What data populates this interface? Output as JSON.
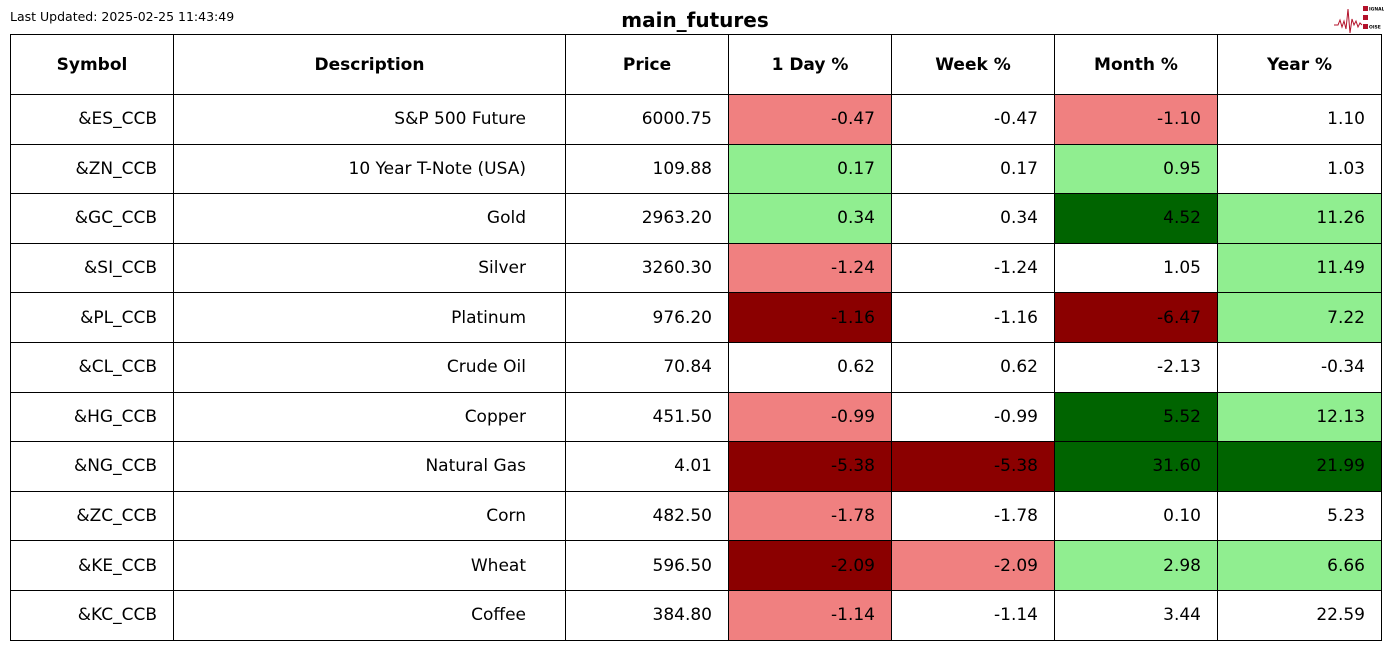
{
  "header": {
    "last_updated": "Last Updated: 2025-02-25 11:43:49",
    "title": "main_futures",
    "logo_text": "SIGNAL 2 NOISE"
  },
  "colors": {
    "LC": "#f08080",
    "LG": "#90ee90",
    "DR": "#8b0000",
    "DG": "#006400",
    "W": "#ffffff"
  },
  "columns": [
    "Symbol",
    "Description",
    "Price",
    "1 Day %",
    "Week %",
    "Month %",
    "Year %"
  ],
  "rows": [
    {
      "cells": [
        "&ES_CCB",
        "S&P 500 Future",
        "6000.75",
        "-0.47",
        "-0.47",
        "-1.10",
        "1.10"
      ],
      "colors": [
        "LC",
        "W",
        "LC",
        "W"
      ]
    },
    {
      "cells": [
        "&ZN_CCB",
        "10 Year T-Note (USA)",
        "109.88",
        "0.17",
        "0.17",
        "0.95",
        "1.03"
      ],
      "colors": [
        "LG",
        "W",
        "LG",
        "W"
      ]
    },
    {
      "cells": [
        "&GC_CCB",
        "Gold",
        "2963.20",
        "0.34",
        "0.34",
        "4.52",
        "11.26"
      ],
      "colors": [
        "LG",
        "W",
        "DG",
        "LG"
      ]
    },
    {
      "cells": [
        "&SI_CCB",
        "Silver",
        "3260.30",
        "-1.24",
        "-1.24",
        "1.05",
        "11.49"
      ],
      "colors": [
        "LC",
        "W",
        "W",
        "LG"
      ]
    },
    {
      "cells": [
        "&PL_CCB",
        "Platinum",
        "976.20",
        "-1.16",
        "-1.16",
        "-6.47",
        "7.22"
      ],
      "colors": [
        "DR",
        "W",
        "DR",
        "LG"
      ]
    },
    {
      "cells": [
        "&CL_CCB",
        "Crude Oil",
        "70.84",
        "0.62",
        "0.62",
        "-2.13",
        "-0.34"
      ],
      "colors": [
        "W",
        "W",
        "W",
        "W"
      ]
    },
    {
      "cells": [
        "&HG_CCB",
        "Copper",
        "451.50",
        "-0.99",
        "-0.99",
        "5.52",
        "12.13"
      ],
      "colors": [
        "LC",
        "W",
        "DG",
        "LG"
      ]
    },
    {
      "cells": [
        "&NG_CCB",
        "Natural Gas",
        "4.01",
        "-5.38",
        "-5.38",
        "31.60",
        "21.99"
      ],
      "colors": [
        "DR",
        "DR",
        "DG",
        "DG"
      ]
    },
    {
      "cells": [
        "&ZC_CCB",
        "Corn",
        "482.50",
        "-1.78",
        "-1.78",
        "0.10",
        "5.23"
      ],
      "colors": [
        "LC",
        "W",
        "W",
        "W"
      ]
    },
    {
      "cells": [
        "&KE_CCB",
        "Wheat",
        "596.50",
        "-2.09",
        "-2.09",
        "2.98",
        "6.66"
      ],
      "colors": [
        "DR",
        "LC",
        "LG",
        "LG"
      ]
    },
    {
      "cells": [
        "&KC_CCB",
        "Coffee",
        "384.80",
        "-1.14",
        "-1.14",
        "3.44",
        "22.59"
      ],
      "colors": [
        "LC",
        "W",
        "W",
        "W"
      ]
    }
  ]
}
